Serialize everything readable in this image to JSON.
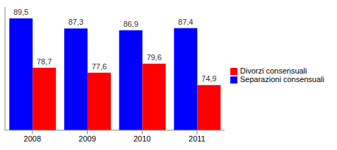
{
  "chart_data": {
    "type": "bar",
    "categories": [
      "2008",
      "2009",
      "2010",
      "2011"
    ],
    "series": [
      {
        "name": "Separazioni consensuali",
        "color": "#0000ff",
        "values": [
          89.5,
          87.3,
          86.9,
          87.4
        ],
        "value_labels": [
          "89,5",
          "87,3",
          "86,9",
          "87,4"
        ]
      },
      {
        "name": "Divorzi consensuali",
        "color": "#ff0000",
        "values": [
          78.7,
          77.6,
          79.6,
          74.9
        ],
        "value_labels": [
          "78,7",
          "77,6",
          "79,6",
          "74,9"
        ]
      }
    ],
    "ylim": [
      65,
      92
    ],
    "data_labels": true,
    "tick_labels": "x",
    "legend": "right"
  }
}
